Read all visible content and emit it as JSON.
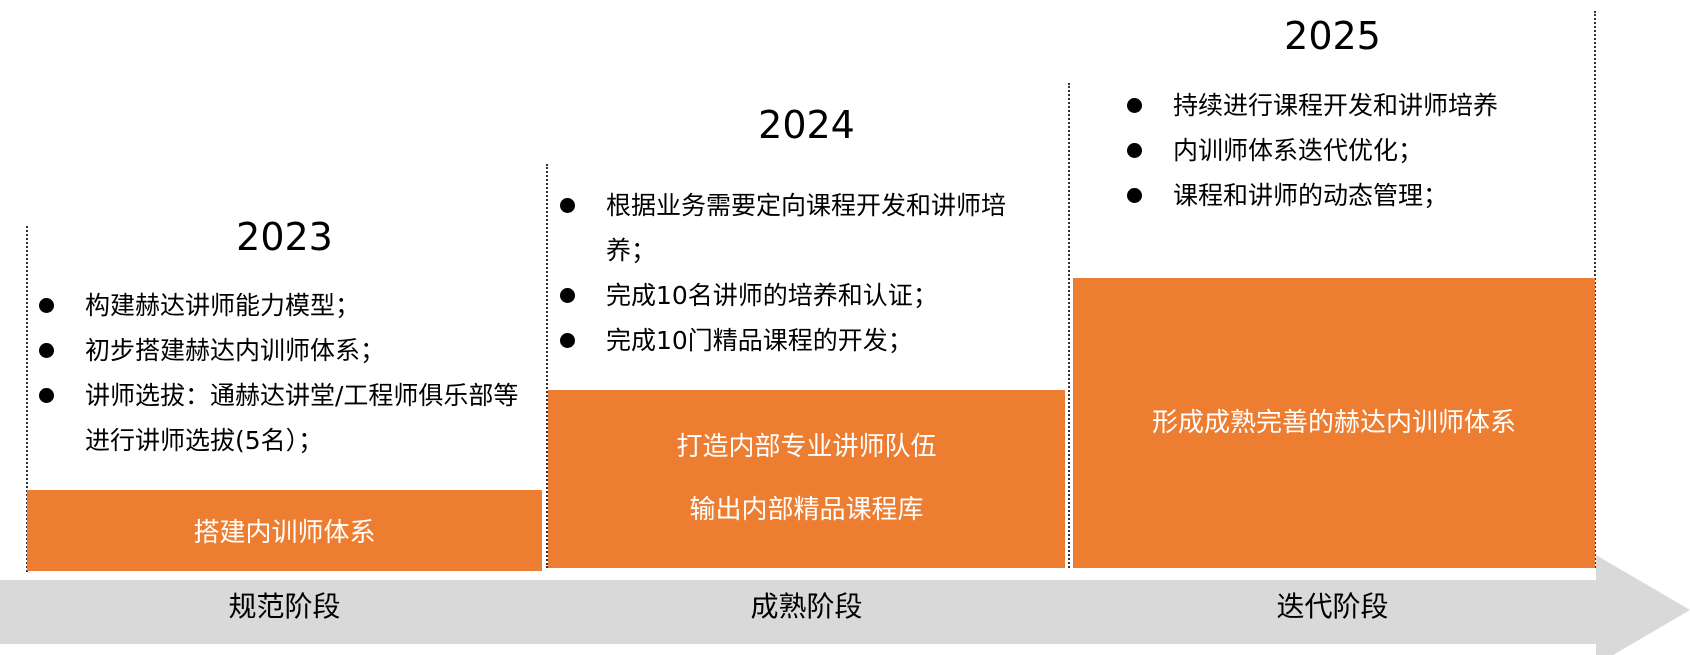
{
  "colors": {
    "accent": "#ed7d31",
    "arrow": "#d9d9d9"
  },
  "phases": [
    {
      "year": "2023",
      "bullets": [
        "构建赫达讲师能力模型；",
        "初步搭建赫达内训师体系；",
        "讲师选拔：通赫达讲堂/工程师俱乐部等进行讲师选拔(5名）；"
      ],
      "goal_lines": [
        "搭建内训师体系"
      ],
      "stage": "规范阶段"
    },
    {
      "year": "2024",
      "bullets": [
        "根据业务需要定向课程开发和讲师培养；",
        "完成10名讲师的培养和认证；",
        "完成10门精品课程的开发；"
      ],
      "goal_lines": [
        "打造内部专业讲师队伍",
        "输出内部精品课程库"
      ],
      "stage": "成熟阶段"
    },
    {
      "year": "2025",
      "bullets": [
        "持续进行课程开发和讲师培养",
        "内训师体系迭代优化；",
        "课程和讲师的动态管理；"
      ],
      "goal_lines": [
        "形成成熟完善的赫达内训师体系"
      ],
      "stage": "迭代阶段"
    }
  ]
}
